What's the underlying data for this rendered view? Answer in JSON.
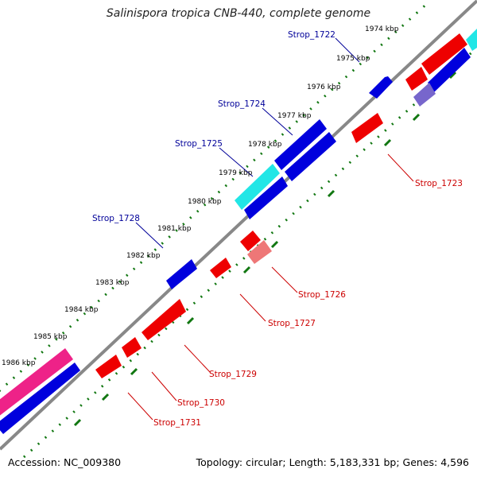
{
  "title": "Salinispora tropica CNB-440, complete genome",
  "footer": {
    "accession": "Accession: NC_009380",
    "summary": "Topology: circular; Length: 5,183,331 bp; Genes: 4,596"
  },
  "ticks": [
    "1974 kbp",
    "1975 kbp",
    "1976 kbp",
    "1977 kbp",
    "1978 kbp",
    "1979 kbp",
    "1980 kbp",
    "1981 kbp",
    "1982 kbp",
    "1983 kbp",
    "1984 kbp",
    "1985 kbp",
    "1986 kbp"
  ],
  "gene_labels": {
    "Strop_1722": "Strop_1722",
    "Strop_1723": "Strop_1723",
    "Strop_1724": "Strop_1724",
    "Strop_1725": "Strop_1725",
    "Strop_1726": "Strop_1726",
    "Strop_1727": "Strop_1727",
    "Strop_1728": "Strop_1728",
    "Strop_1729": "Strop_1729",
    "Strop_1730": "Strop_1730",
    "Strop_1731": "Strop_1731"
  },
  "colors": {
    "backbone": "#888888",
    "forward": "#0000dd",
    "reverse": "#ee0000",
    "reverse_light": "#ee7777",
    "cyan": "#22e6e6",
    "magenta": "#ee2288",
    "purple": "#7766cc",
    "dots": "#117711",
    "label_blue": "#000099",
    "label_red": "#cc0000"
  }
}
